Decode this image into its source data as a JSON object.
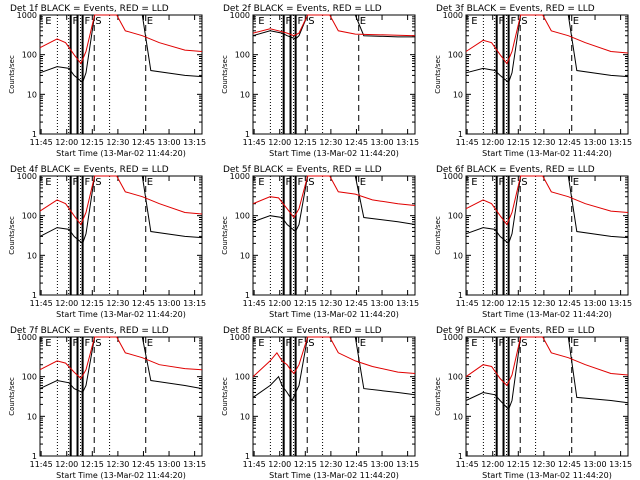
{
  "colors": {
    "events": "#000000",
    "lld": "#e00000",
    "background": "#ffffff"
  },
  "chart_data": [
    {
      "id": 1,
      "type": "line",
      "title": "Det 1f BLACK = Events, RED = LLD",
      "xlabel": "Start Time (13-Mar-02 11:44:20)",
      "ylabel": "Counts/sec",
      "yscale": "log",
      "ylim": [
        1,
        1000
      ],
      "x_ticks": [
        "11:45",
        "12:00",
        "12:15",
        "12:30",
        "12:45",
        "13:00",
        "13:15"
      ],
      "y_ticks": [
        "1",
        "10",
        "100",
        "1000"
      ],
      "x_range_min": [
        0,
        95
      ],
      "markers": [
        "E",
        "F",
        "F",
        "S",
        "E"
      ],
      "series": [
        {
          "name": "Events",
          "color": "#000000",
          "x": [
            0,
            10,
            17,
            20,
            25,
            27,
            32,
            35,
            37,
            45,
            60,
            65,
            85,
            95
          ],
          "y": [
            35,
            50,
            45,
            30,
            20,
            35,
            1000,
            1000,
            1000,
            1000,
            1000,
            40,
            30,
            28
          ]
        },
        {
          "name": "LLD",
          "color": "#e00000",
          "x": [
            0,
            10,
            15,
            20,
            24,
            27,
            32,
            35,
            37,
            45,
            50,
            60,
            70,
            85,
            95
          ],
          "y": [
            150,
            250,
            200,
            100,
            60,
            120,
            1000,
            1000,
            1000,
            1000,
            400,
            300,
            200,
            130,
            120
          ]
        }
      ]
    },
    {
      "id": 2,
      "type": "line",
      "title": "Det 2f BLACK = Events, RED = LLD",
      "xlabel": "Start Time (13-Mar-02 11:44:20)",
      "ylabel": "Counts/sec",
      "yscale": "log",
      "ylim": [
        1,
        1000
      ],
      "x_ticks": [
        "11:45",
        "12:00",
        "12:15",
        "12:30",
        "12:45",
        "13:00",
        "13:15"
      ],
      "y_ticks": [
        "1",
        "10",
        "100",
        "1000"
      ],
      "x_range_min": [
        0,
        95
      ],
      "markers": [
        "E",
        "F",
        "F",
        "S",
        "E"
      ],
      "series": [
        {
          "name": "Events",
          "color": "#000000",
          "x": [
            0,
            10,
            17,
            20,
            25,
            27,
            32,
            35,
            37,
            45,
            60,
            65,
            85,
            95
          ],
          "y": [
            300,
            400,
            350,
            300,
            250,
            300,
            1000,
            1000,
            1000,
            1000,
            1000,
            300,
            280,
            280
          ]
        },
        {
          "name": "LLD",
          "color": "#e00000",
          "x": [
            0,
            10,
            15,
            20,
            24,
            27,
            32,
            35,
            37,
            45,
            50,
            60,
            70,
            85,
            95
          ],
          "y": [
            350,
            450,
            400,
            350,
            300,
            350,
            1000,
            1000,
            1000,
            1000,
            400,
            330,
            320,
            310,
            300
          ]
        }
      ]
    },
    {
      "id": 3,
      "type": "line",
      "title": "Det 3f BLACK = Events, RED = LLD",
      "xlabel": "Start Time (13-Mar-02 11:44:20)",
      "ylabel": "Counts/sec",
      "yscale": "log",
      "ylim": [
        1,
        1000
      ],
      "x_ticks": [
        "11:45",
        "12:00",
        "12:15",
        "12:30",
        "12:45",
        "13:00",
        "13:15"
      ],
      "y_ticks": [
        "1",
        "10",
        "100",
        "1000"
      ],
      "x_range_min": [
        0,
        95
      ],
      "markers": [
        "E",
        "F",
        "F",
        "S",
        "E"
      ],
      "series": [
        {
          "name": "Events",
          "color": "#000000",
          "x": [
            0,
            10,
            17,
            20,
            25,
            27,
            32,
            35,
            37,
            45,
            60,
            65,
            85,
            95
          ],
          "y": [
            35,
            45,
            40,
            30,
            20,
            35,
            1000,
            1000,
            1000,
            1000,
            1000,
            40,
            30,
            28
          ]
        },
        {
          "name": "LLD",
          "color": "#e00000",
          "x": [
            0,
            10,
            15,
            20,
            24,
            27,
            32,
            35,
            37,
            45,
            50,
            60,
            70,
            85,
            95
          ],
          "y": [
            120,
            230,
            200,
            100,
            60,
            120,
            1000,
            1000,
            1000,
            1000,
            400,
            300,
            200,
            120,
            110
          ]
        }
      ]
    },
    {
      "id": 4,
      "type": "line",
      "title": "Det 4f BLACK = Events, RED = LLD",
      "xlabel": "Start Time (13-Mar-02 11:44:20)",
      "ylabel": "Counts/sec",
      "yscale": "log",
      "ylim": [
        1,
        1000
      ],
      "x_ticks": [
        "11:45",
        "12:00",
        "12:15",
        "12:30",
        "12:45",
        "13:00",
        "13:15"
      ],
      "y_ticks": [
        "1",
        "10",
        "100",
        "1000"
      ],
      "x_range_min": [
        0,
        95
      ],
      "markers": [
        "E",
        "F",
        "F",
        "S",
        "E"
      ],
      "series": [
        {
          "name": "Events",
          "color": "#000000",
          "x": [
            0,
            10,
            17,
            20,
            25,
            27,
            32,
            35,
            37,
            45,
            60,
            65,
            85,
            95
          ],
          "y": [
            30,
            50,
            45,
            30,
            20,
            35,
            1000,
            1000,
            1000,
            1000,
            1000,
            40,
            30,
            28
          ]
        },
        {
          "name": "LLD",
          "color": "#e00000",
          "x": [
            0,
            10,
            15,
            20,
            24,
            27,
            32,
            35,
            37,
            45,
            50,
            60,
            70,
            85,
            95
          ],
          "y": [
            130,
            250,
            200,
            100,
            60,
            120,
            1000,
            1000,
            1000,
            1000,
            400,
            300,
            200,
            120,
            110
          ]
        }
      ]
    },
    {
      "id": 5,
      "type": "line",
      "title": "Det 5f BLACK = Events, RED = LLD",
      "xlabel": "Start Time (13-Mar-02 11:44:20)",
      "ylabel": "Counts/sec",
      "yscale": "log",
      "ylim": [
        1,
        1000
      ],
      "x_ticks": [
        "11:45",
        "12:00",
        "12:15",
        "12:30",
        "12:45",
        "13:00",
        "13:15"
      ],
      "y_ticks": [
        "1",
        "10",
        "100",
        "1000"
      ],
      "x_range_min": [
        0,
        95
      ],
      "markers": [
        "E",
        "F",
        "F",
        "S",
        "E"
      ],
      "series": [
        {
          "name": "Events",
          "color": "#000000",
          "x": [
            0,
            10,
            17,
            20,
            25,
            27,
            32,
            35,
            37,
            45,
            60,
            65,
            85,
            95
          ],
          "y": [
            70,
            100,
            90,
            60,
            40,
            60,
            1000,
            1000,
            1000,
            1000,
            1000,
            90,
            70,
            60
          ]
        },
        {
          "name": "LLD",
          "color": "#e00000",
          "x": [
            0,
            10,
            15,
            20,
            24,
            27,
            32,
            35,
            37,
            45,
            50,
            60,
            70,
            85,
            95
          ],
          "y": [
            200,
            300,
            280,
            150,
            90,
            150,
            1000,
            1000,
            1000,
            1000,
            400,
            350,
            250,
            200,
            180
          ]
        }
      ]
    },
    {
      "id": 6,
      "type": "line",
      "title": "Det 6f BLACK = Events, RED = LLD",
      "xlabel": "Start Time (13-Mar-02 11:44:20)",
      "ylabel": "Counts/sec",
      "yscale": "log",
      "ylim": [
        1,
        1000
      ],
      "x_ticks": [
        "11:45",
        "12:00",
        "12:15",
        "12:30",
        "12:45",
        "13:00",
        "13:15"
      ],
      "y_ticks": [
        "1",
        "10",
        "100",
        "1000"
      ],
      "x_range_min": [
        0,
        95
      ],
      "markers": [
        "E",
        "F",
        "F",
        "S",
        "E"
      ],
      "series": [
        {
          "name": "Events",
          "color": "#000000",
          "x": [
            0,
            10,
            17,
            20,
            25,
            27,
            32,
            35,
            37,
            45,
            60,
            65,
            85,
            95
          ],
          "y": [
            35,
            50,
            45,
            30,
            20,
            35,
            1000,
            1000,
            1000,
            1000,
            1000,
            40,
            30,
            28
          ]
        },
        {
          "name": "LLD",
          "color": "#e00000",
          "x": [
            0,
            10,
            15,
            20,
            24,
            27,
            32,
            35,
            37,
            45,
            50,
            60,
            70,
            85,
            95
          ],
          "y": [
            150,
            250,
            200,
            100,
            60,
            120,
            1000,
            1000,
            1000,
            1000,
            400,
            300,
            200,
            130,
            120
          ]
        }
      ]
    },
    {
      "id": 7,
      "type": "line",
      "title": "Det 7f BLACK = Events, RED = LLD",
      "xlabel": "Start Time (13-Mar-02 11:44:20)",
      "ylabel": "Counts/sec",
      "yscale": "log",
      "ylim": [
        1,
        1000
      ],
      "x_ticks": [
        "11:45",
        "12:00",
        "12:15",
        "12:30",
        "12:45",
        "13:00",
        "13:15"
      ],
      "y_ticks": [
        "1",
        "10",
        "100",
        "1000"
      ],
      "x_range_min": [
        0,
        95
      ],
      "markers": [
        "E",
        "F",
        "F",
        "S",
        "E"
      ],
      "series": [
        {
          "name": "Events",
          "color": "#000000",
          "x": [
            0,
            10,
            17,
            20,
            25,
            27,
            32,
            35,
            37,
            45,
            60,
            65,
            85,
            95
          ],
          "y": [
            50,
            80,
            70,
            50,
            40,
            60,
            1000,
            1000,
            1000,
            1000,
            1000,
            80,
            60,
            50
          ]
        },
        {
          "name": "LLD",
          "color": "#e00000",
          "x": [
            0,
            10,
            15,
            20,
            24,
            27,
            32,
            35,
            37,
            45,
            50,
            60,
            70,
            85,
            95
          ],
          "y": [
            150,
            250,
            220,
            130,
            90,
            150,
            1000,
            1000,
            1000,
            1000,
            400,
            300,
            200,
            160,
            150
          ]
        }
      ]
    },
    {
      "id": 8,
      "type": "line",
      "title": "Det 8f BLACK = Events, RED = LLD",
      "xlabel": "Start Time (13-Mar-02 11:44:20)",
      "ylabel": "Counts/sec",
      "yscale": "log",
      "ylim": [
        1,
        1000
      ],
      "x_ticks": [
        "11:45",
        "12:00",
        "12:15",
        "12:30",
        "12:45",
        "13:00",
        "13:15"
      ],
      "y_ticks": [
        "1",
        "10",
        "100",
        "1000"
      ],
      "x_range_min": [
        0,
        95
      ],
      "markers": [
        "E",
        "F",
        "F",
        "S",
        "E"
      ],
      "series": [
        {
          "name": "Events",
          "color": "#000000",
          "x": [
            0,
            10,
            15,
            17,
            20,
            23,
            25,
            27,
            32,
            35,
            37,
            45,
            60,
            65,
            85,
            95
          ],
          "y": [
            30,
            60,
            100,
            60,
            40,
            25,
            40,
            60,
            1000,
            1000,
            1000,
            1000,
            1000,
            50,
            40,
            35
          ]
        },
        {
          "name": "LLD",
          "color": "#e00000",
          "x": [
            0,
            10,
            14,
            17,
            20,
            22,
            24,
            27,
            32,
            35,
            37,
            45,
            50,
            60,
            70,
            85,
            95
          ],
          "y": [
            100,
            250,
            400,
            250,
            200,
            150,
            120,
            200,
            1000,
            1000,
            1000,
            1000,
            400,
            250,
            180,
            130,
            120
          ]
        }
      ]
    },
    {
      "id": 9,
      "type": "line",
      "title": "Det 9f BLACK = Events, RED = LLD",
      "xlabel": "Start Time (13-Mar-02 11:44:20)",
      "ylabel": "Counts/sec",
      "yscale": "log",
      "ylim": [
        1,
        1000
      ],
      "x_ticks": [
        "11:45",
        "12:00",
        "12:15",
        "12:30",
        "12:45",
        "13:00",
        "13:15"
      ],
      "y_ticks": [
        "1",
        "10",
        "100",
        "1000"
      ],
      "x_range_min": [
        0,
        95
      ],
      "markers": [
        "E",
        "F",
        "F",
        "S",
        "E"
      ],
      "series": [
        {
          "name": "Events",
          "color": "#000000",
          "x": [
            0,
            10,
            17,
            20,
            25,
            27,
            32,
            35,
            37,
            45,
            60,
            65,
            85,
            95
          ],
          "y": [
            25,
            40,
            35,
            25,
            15,
            25,
            1000,
            1000,
            1000,
            1000,
            1000,
            30,
            25,
            22
          ]
        },
        {
          "name": "LLD",
          "color": "#e00000",
          "x": [
            0,
            10,
            15,
            20,
            24,
            27,
            32,
            35,
            37,
            45,
            50,
            60,
            70,
            85,
            95
          ],
          "y": [
            100,
            200,
            180,
            90,
            60,
            110,
            1000,
            1000,
            1000,
            1000,
            400,
            300,
            200,
            120,
            110
          ]
        }
      ]
    }
  ]
}
